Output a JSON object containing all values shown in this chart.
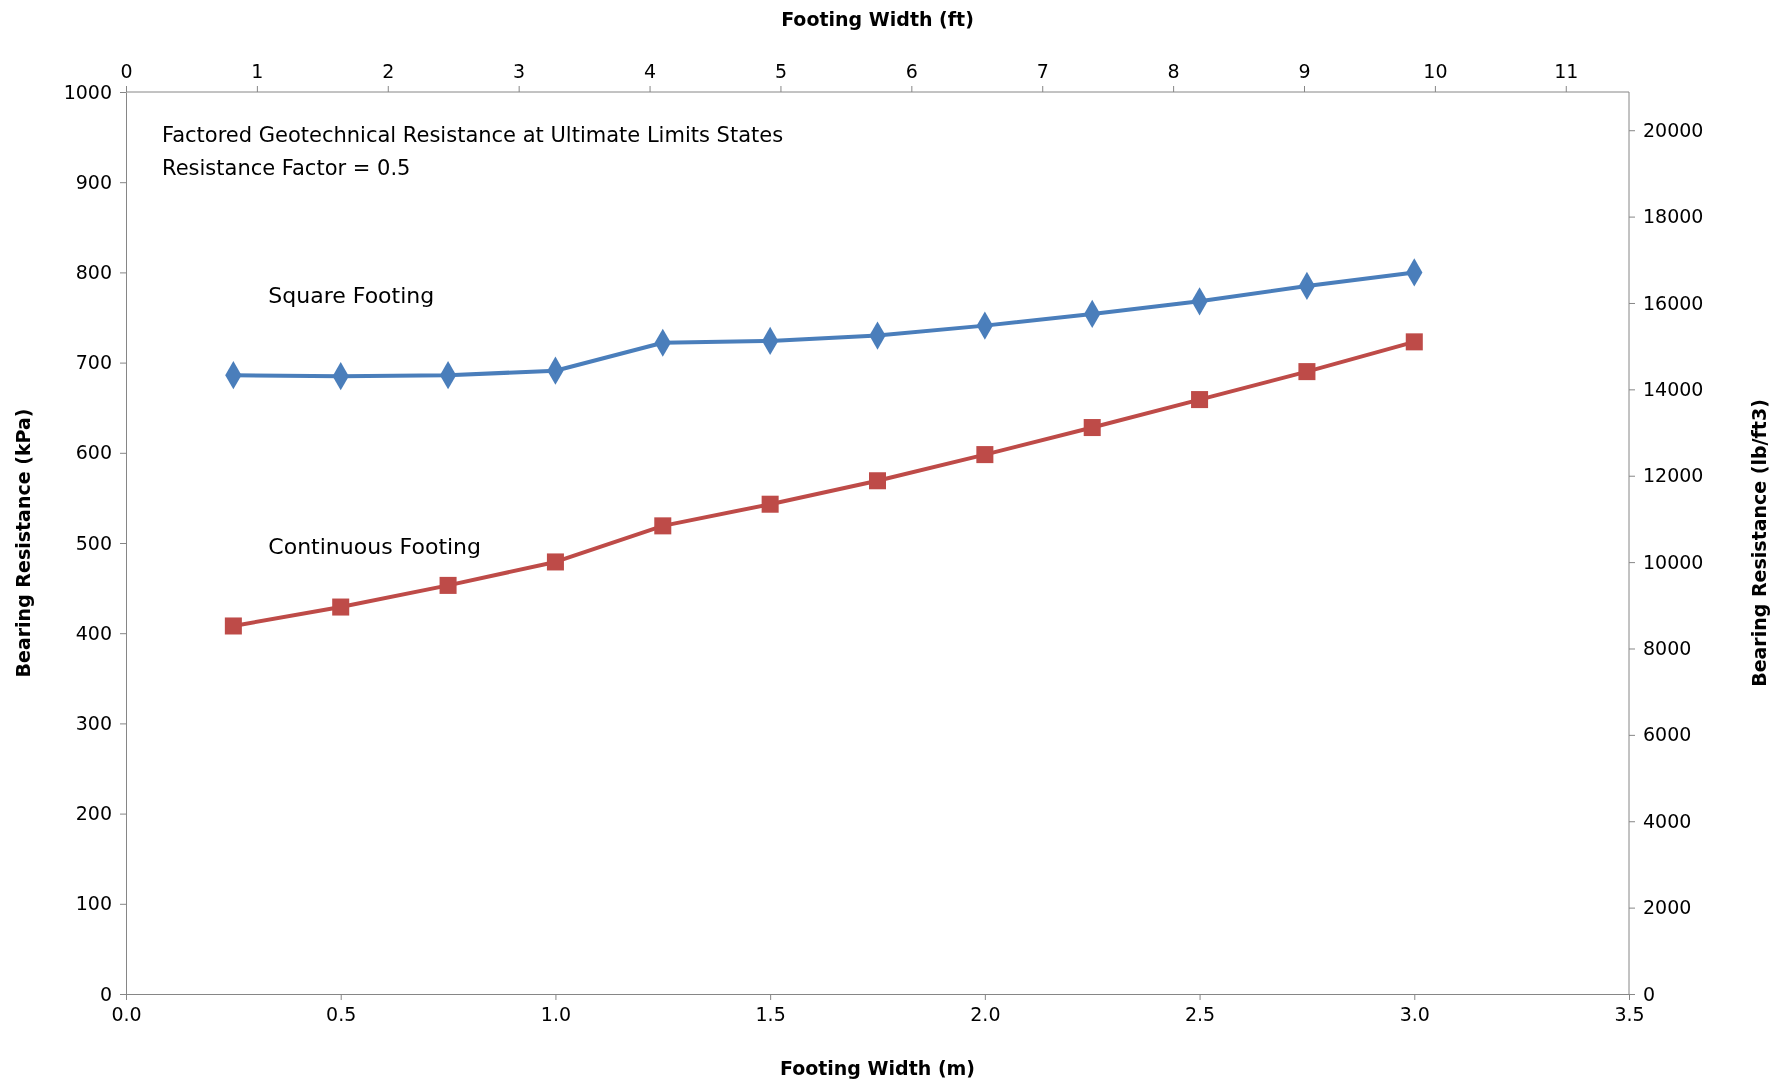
{
  "chart_data": {
    "type": "line",
    "xlabel": "Footing Width (m)",
    "ylabel": "Bearing Resistance (kPa)",
    "y2label": "Bearing Resistance (lb/ft3)",
    "x2label": "Footing Width (ft)",
    "x": [
      0.25,
      0.5,
      0.75,
      1.0,
      1.25,
      1.5,
      1.75,
      2.0,
      2.25,
      2.5,
      2.75,
      3.0
    ],
    "xlim": [
      0,
      3.5
    ],
    "xticks": [
      {
        "value": 0,
        "label": "0.0"
      },
      0.5,
      {
        "value": 1,
        "label": "1.0"
      },
      1.5,
      {
        "value": 2,
        "label": "2.0"
      },
      2.5,
      {
        "value": 3,
        "label": "3.0"
      },
      3.5
    ],
    "ylim": [
      0,
      1000
    ],
    "yticks": [
      0,
      100,
      200,
      300,
      400,
      500,
      600,
      700,
      800,
      900,
      1000
    ],
    "y2lim": [
      0,
      20885
    ],
    "y2ticks": [
      0,
      2000,
      4000,
      6000,
      8000,
      10000,
      12000,
      14000,
      16000,
      18000,
      20000
    ],
    "x2lim": [
      0,
      11.483
    ],
    "x2ticks": [
      0,
      1,
      2,
      3,
      4,
      5,
      6,
      7,
      8,
      9,
      10,
      11
    ],
    "grid": false,
    "series": [
      {
        "name": "Square Footing",
        "color": "#4a7ebb",
        "marker": "diamond",
        "values": [
          686,
          685,
          686,
          691,
          722,
          724,
          730,
          741,
          754,
          768,
          785,
          800
        ]
      },
      {
        "name": "Continuous Footing",
        "color": "#be4b48",
        "marker": "square",
        "values": [
          408,
          429,
          453,
          479,
          519,
          543,
          569,
          598,
          628,
          659,
          690,
          723
        ]
      }
    ],
    "annotations": [
      "Factored Geotechnical Resistance at Ultimate Limits States",
      "Resistance Factor = 0.5"
    ]
  }
}
